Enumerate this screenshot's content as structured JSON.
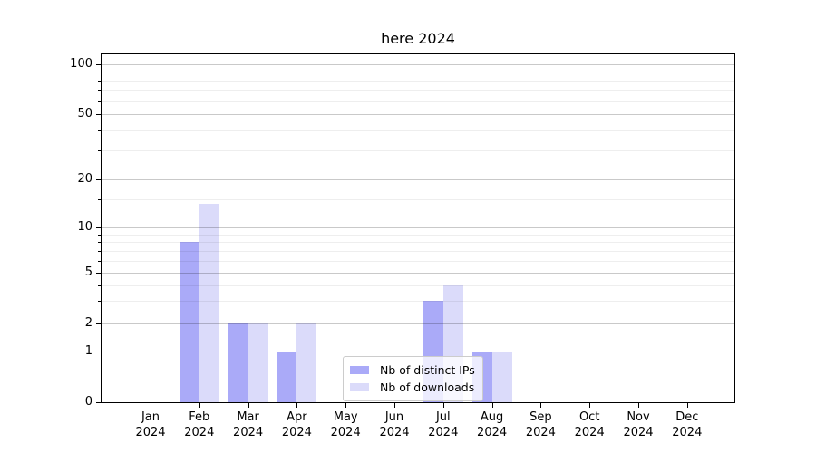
{
  "figure": {
    "title": "here 2024"
  },
  "legend": {
    "items": [
      {
        "label": "Nb of distinct IPs",
        "color": "#aaaaf8"
      },
      {
        "label": "Nb of downloads",
        "color": "#dbdbfa"
      }
    ],
    "position": "lower center"
  },
  "chart_data": {
    "type": "bar",
    "title": "here 2024",
    "categories": [
      "Jan 2024",
      "Feb 2024",
      "Mar 2024",
      "Apr 2024",
      "May 2024",
      "Jun 2024",
      "Jul 2024",
      "Aug 2024",
      "Sep 2024",
      "Oct 2024",
      "Nov 2024",
      "Dec 2024"
    ],
    "series": [
      {
        "name": "Nb of distinct IPs",
        "color": "#aaaaf8",
        "values": [
          0,
          8,
          2,
          1,
          0,
          0,
          3,
          1,
          0,
          0,
          0,
          0
        ]
      },
      {
        "name": "Nb of downloads",
        "color": "#dbdbfa",
        "values": [
          0,
          14,
          2,
          2,
          0,
          0,
          4,
          1,
          0,
          0,
          0,
          0
        ]
      }
    ],
    "xlabel": "",
    "ylabel": "",
    "yscale": "quasi-log (asinh-like, includes 0)",
    "yticks": [
      0,
      1,
      2,
      5,
      10,
      20,
      50,
      100
    ],
    "minor_yticks": [
      3,
      4,
      6,
      7,
      8,
      9,
      15,
      30,
      40,
      60,
      70,
      80,
      90
    ],
    "ylim": [
      0,
      115
    ],
    "grid": "horizontal major and minor, drawn over bars",
    "legend_position": "lower center inside plot"
  }
}
